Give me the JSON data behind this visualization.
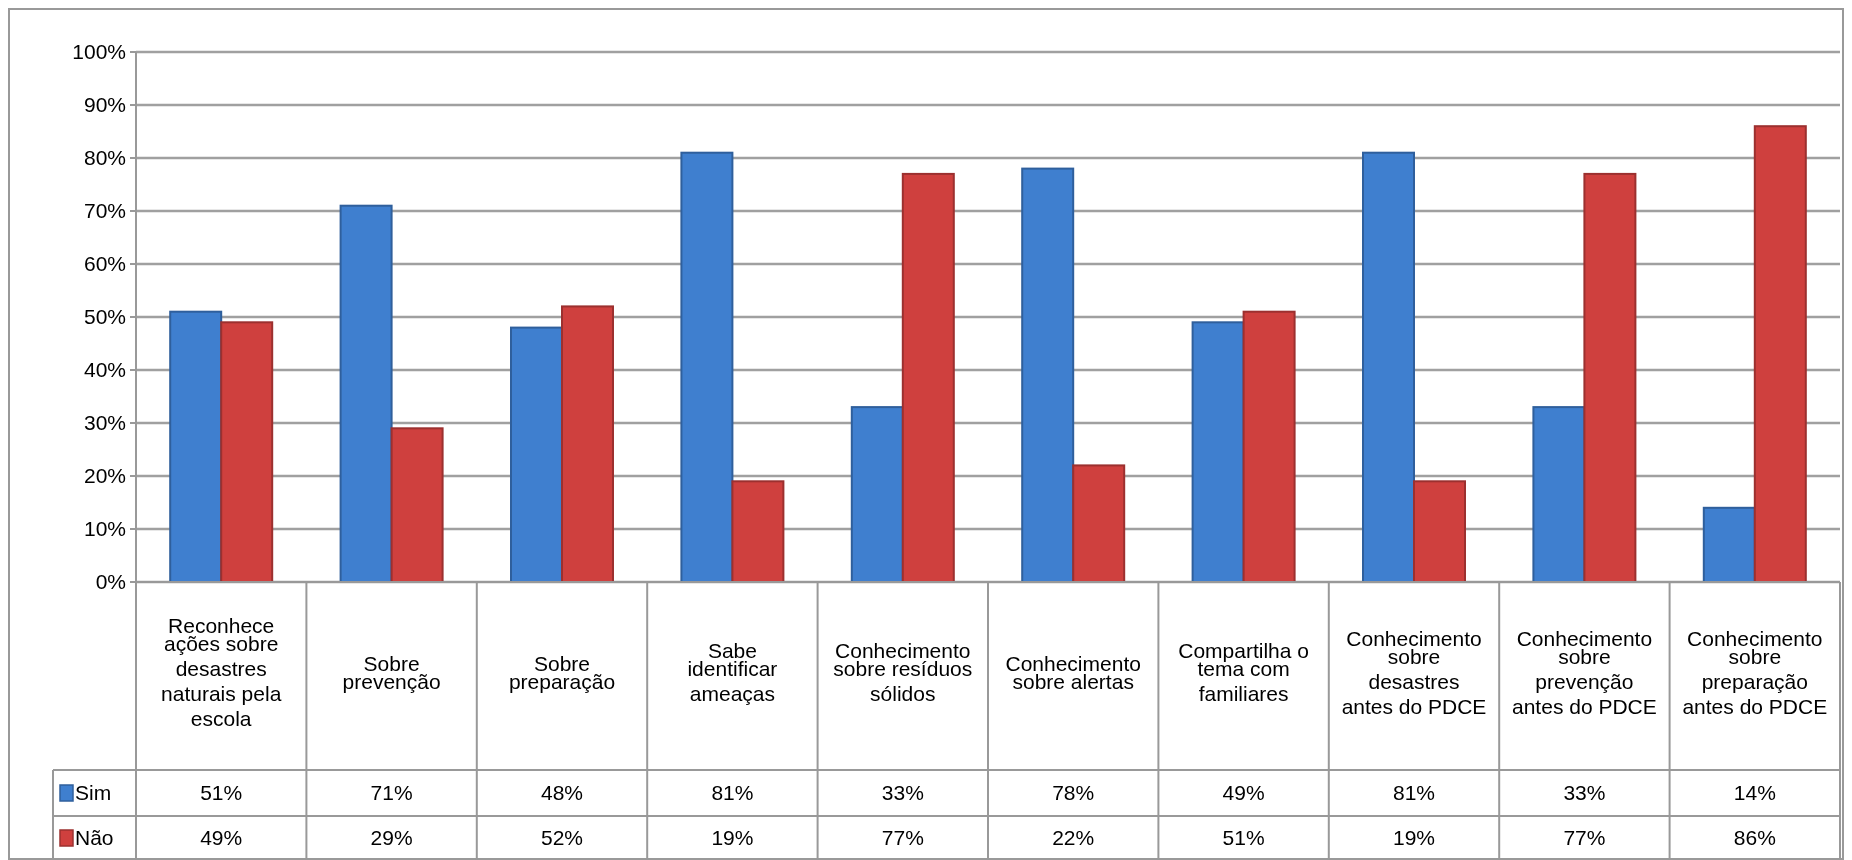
{
  "chart_data": {
    "type": "bar",
    "categories": [
      "Reconhece ações sobre desastres naturais pela escola",
      "Sobre prevenção",
      "Sobre preparação",
      "Sabe identificar ameaças",
      "Conhecimento sobre resíduos sólidos",
      "Conhecimento sobre alertas",
      "Compartilha o tema com familiares",
      "Conhecimento sobre desastres antes do PDCE",
      "Conhecimento sobre prevenção antes do PDCE",
      "Conhecimento sobre preparação antes do PDCE"
    ],
    "series": [
      {
        "name": "Sim",
        "color": "#3f7fcf",
        "values": [
          51,
          71,
          48,
          81,
          33,
          78,
          49,
          81,
          33,
          14
        ],
        "value_labels": [
          "51%",
          "71%",
          "48%",
          "81%",
          "33%",
          "78%",
          "49%",
          "81%",
          "33%",
          "14%"
        ]
      },
      {
        "name": "Não",
        "color": "#cf403e",
        "values": [
          49,
          29,
          52,
          19,
          77,
          22,
          51,
          19,
          77,
          86
        ],
        "value_labels": [
          "49%",
          "29%",
          "52%",
          "19%",
          "77%",
          "22%",
          "51%",
          "19%",
          "77%",
          "86%"
        ]
      }
    ],
    "ylim": [
      0,
      100
    ],
    "yticks": [
      {
        "value": 0,
        "label": "0%"
      },
      {
        "value": 10,
        "label": "10%"
      },
      {
        "value": 20,
        "label": "20%"
      },
      {
        "value": 30,
        "label": "30%"
      },
      {
        "value": 40,
        "label": "40%"
      },
      {
        "value": 50,
        "label": "50%"
      },
      {
        "value": 60,
        "label": "60%"
      },
      {
        "value": 70,
        "label": "70%"
      },
      {
        "value": 80,
        "label": "80%"
      },
      {
        "value": 90,
        "label": "90%"
      },
      {
        "value": 100,
        "label": "100%"
      }
    ],
    "grid": "y",
    "legend": "bottom left"
  }
}
